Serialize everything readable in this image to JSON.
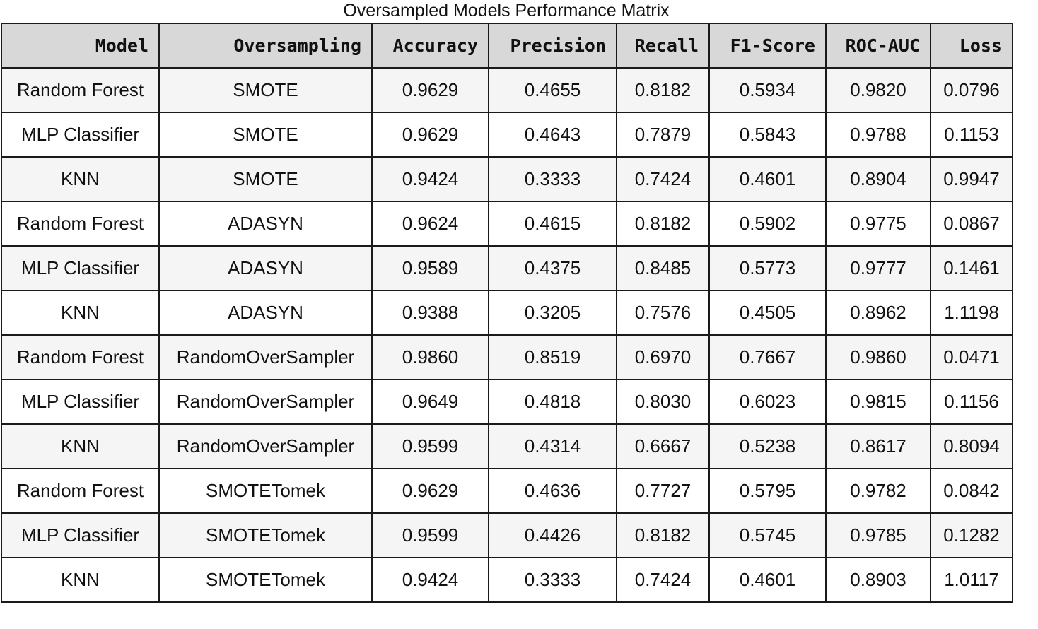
{
  "chart_data": {
    "type": "table",
    "title": "Oversampled Models Performance Matrix",
    "columns": [
      "Model",
      "Oversampling",
      "Accuracy",
      "Precision",
      "Recall",
      "F1-Score",
      "ROC-AUC",
      "Loss"
    ],
    "rows": [
      [
        "Random Forest",
        "SMOTE",
        "0.9629",
        "0.4655",
        "0.8182",
        "0.5934",
        "0.9820",
        "0.0796"
      ],
      [
        "MLP Classifier",
        "SMOTE",
        "0.9629",
        "0.4643",
        "0.7879",
        "0.5843",
        "0.9788",
        "0.1153"
      ],
      [
        "KNN",
        "SMOTE",
        "0.9424",
        "0.3333",
        "0.7424",
        "0.4601",
        "0.8904",
        "0.9947"
      ],
      [
        "Random Forest",
        "ADASYN",
        "0.9624",
        "0.4615",
        "0.8182",
        "0.5902",
        "0.9775",
        "0.0867"
      ],
      [
        "MLP Classifier",
        "ADASYN",
        "0.9589",
        "0.4375",
        "0.8485",
        "0.5773",
        "0.9777",
        "0.1461"
      ],
      [
        "KNN",
        "ADASYN",
        "0.9388",
        "0.3205",
        "0.7576",
        "0.4505",
        "0.8962",
        "1.1198"
      ],
      [
        "Random Forest",
        "RandomOverSampler",
        "0.9860",
        "0.8519",
        "0.6970",
        "0.7667",
        "0.9860",
        "0.0471"
      ],
      [
        "MLP Classifier",
        "RandomOverSampler",
        "0.9649",
        "0.4818",
        "0.8030",
        "0.6023",
        "0.9815",
        "0.1156"
      ],
      [
        "KNN",
        "RandomOverSampler",
        "0.9599",
        "0.4314",
        "0.6667",
        "0.5238",
        "0.8617",
        "0.8094"
      ],
      [
        "Random Forest",
        "SMOTETomek",
        "0.9629",
        "0.4636",
        "0.7727",
        "0.5795",
        "0.9782",
        "0.0842"
      ],
      [
        "MLP Classifier",
        "SMOTETomek",
        "0.9599",
        "0.4426",
        "0.8182",
        "0.5745",
        "0.9785",
        "0.1282"
      ],
      [
        "KNN",
        "SMOTETomek",
        "0.9424",
        "0.3333",
        "0.7424",
        "0.4601",
        "0.8903",
        "1.0117"
      ]
    ],
    "colors": {
      "header_background": "#d8d8d8",
      "row_odd_background": "#f5f5f5",
      "row_even_background": "#ffffff",
      "border": "#1a1a1a"
    }
  }
}
